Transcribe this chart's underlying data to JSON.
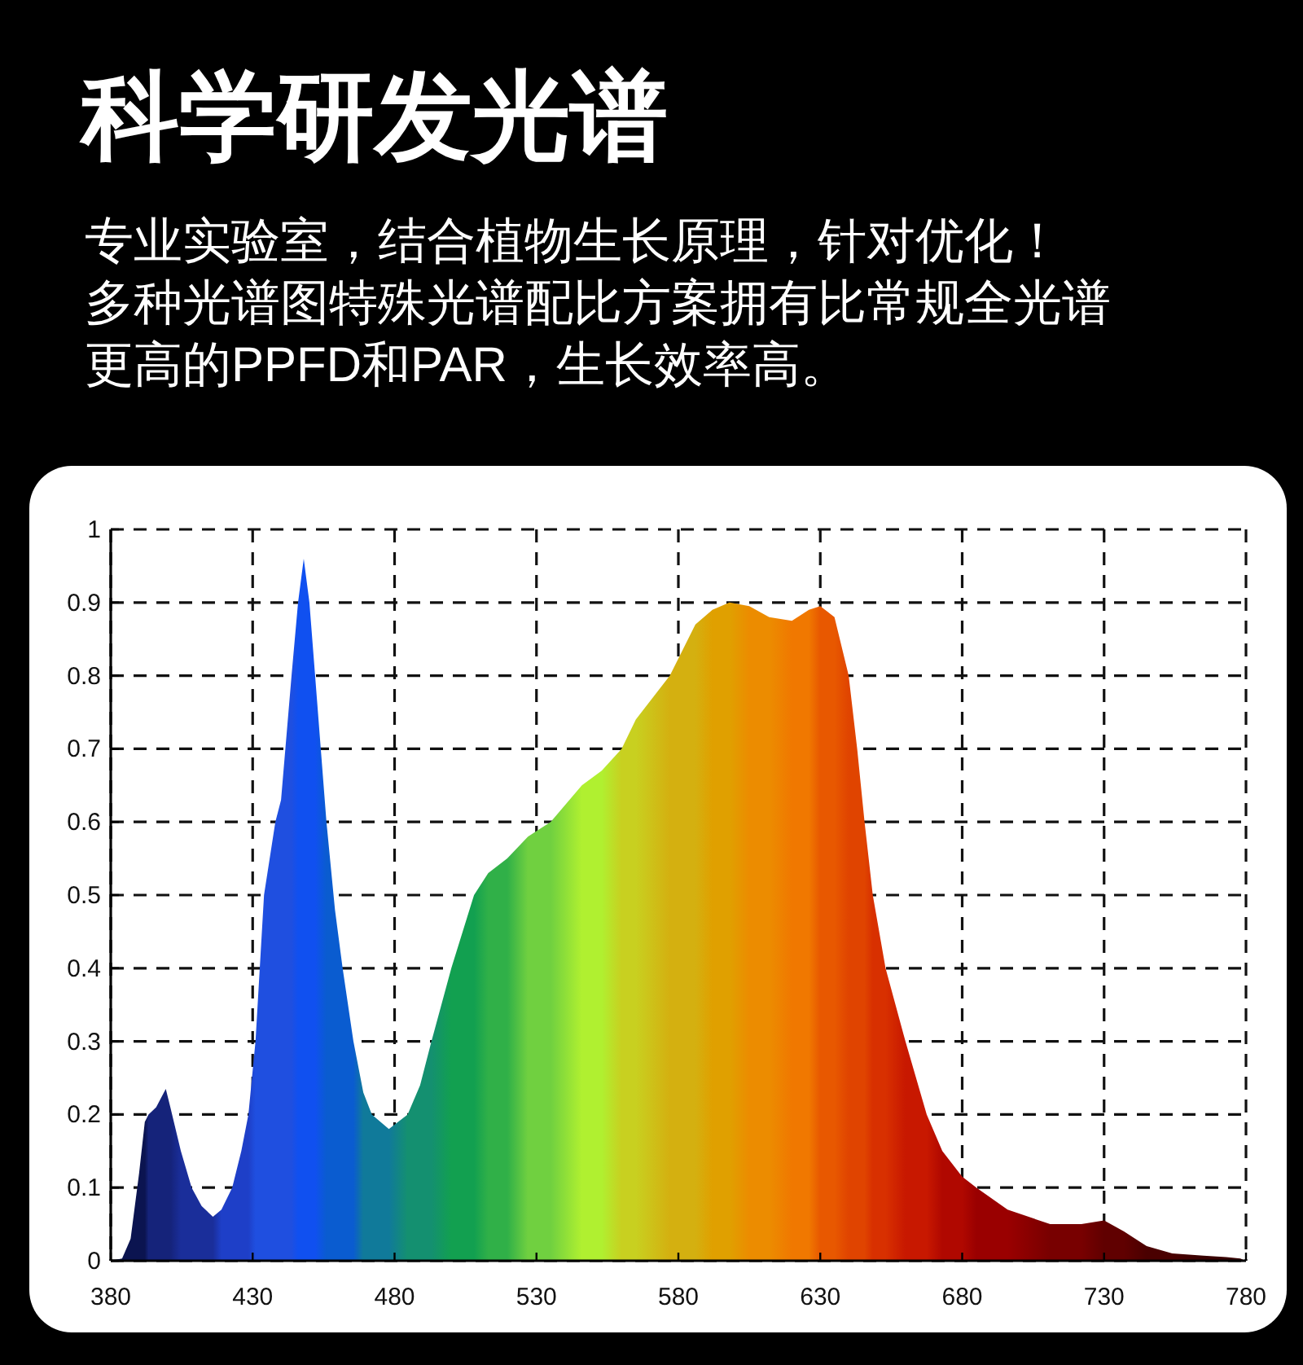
{
  "chart_data": {
    "type": "area",
    "title": "科学研发光谱",
    "subtitle": "专业实验室，结合植物生长原理，针对优化！多种光谱图特殊光谱配比方案拥有比常规全光谱更高的PPFD和PAR，生长效率高。",
    "xlim": [
      380,
      780
    ],
    "xticks": [
      380,
      430,
      480,
      530,
      580,
      630,
      680,
      730,
      780
    ],
    "ylim": [
      0,
      1
    ],
    "yticks": [
      0,
      0.1,
      0.2,
      0.3,
      0.4,
      0.5,
      0.6,
      0.7,
      0.8,
      0.9,
      1
    ],
    "grid": true,
    "series": [
      {
        "x": [
          380,
          384,
          387,
          390,
          392,
          393.3,
          396,
          399.4,
          401,
          404.7,
          408.5,
          412,
          416,
          419,
          422.8,
          426,
          428.5,
          431,
          434,
          438,
          440,
          443.7,
          446,
          448,
          450,
          452,
          456,
          459,
          461.7,
          465.5,
          469,
          472,
          478,
          484.6,
          489,
          493,
          500,
          508,
          513,
          519.7,
          527,
          535,
          546,
          553,
          560,
          565,
          577,
          586,
          592,
          598,
          605,
          612,
          620,
          626,
          630,
          635,
          640,
          643,
          645.6,
          648.5,
          653,
          660,
          667.5,
          673,
          680,
          685,
          696,
          711,
          722,
          730,
          737,
          745,
          754,
          765,
          773,
          778,
          780
        ],
        "values": [
          0,
          0.003,
          0.03,
          0.12,
          0.19,
          0.2,
          0.21,
          0.235,
          0.21,
          0.15,
          0.1,
          0.075,
          0.06,
          0.07,
          0.1,
          0.15,
          0.2,
          0.3,
          0.5,
          0.6,
          0.63,
          0.8,
          0.9,
          0.96,
          0.9,
          0.8,
          0.6,
          0.48,
          0.4,
          0.3,
          0.23,
          0.2,
          0.18,
          0.2,
          0.24,
          0.3,
          0.4,
          0.5,
          0.53,
          0.55,
          0.58,
          0.6,
          0.65,
          0.67,
          0.7,
          0.74,
          0.8,
          0.87,
          0.89,
          0.9,
          0.895,
          0.88,
          0.875,
          0.89,
          0.895,
          0.88,
          0.8,
          0.7,
          0.6,
          0.5,
          0.4,
          0.3,
          0.2,
          0.15,
          0.115,
          0.1,
          0.07,
          0.05,
          0.05,
          0.055,
          0.04,
          0.02,
          0.01,
          0.007,
          0.005,
          0.003,
          0
        ],
        "colors": [
          "#0b1450",
          "#0b1450",
          "#0b1450",
          "#0b1450",
          "#0b1450",
          "#15237a",
          "#15237a",
          "#15237a",
          "#15237a",
          "#1a2e9a",
          "#1a2e9a",
          "#1a2e9a",
          "#1a2e9a",
          "#1e3fc8",
          "#1e3fc8",
          "#1e3fc8",
          "#1e3fc8",
          "#1f4fe0",
          "#1f4fe0",
          "#1f4fe0",
          "#1f4fe0",
          "#1f4fe0",
          "#1050f0",
          "#1050f0",
          "#1050f0",
          "#1050f0",
          "#0a5cd0",
          "#0a5cd0",
          "#0a5cd0",
          "#0a5cd0",
          "#107a9a",
          "#107a9a",
          "#107a9a",
          "#149070",
          "#149070",
          "#149070",
          "#12a050",
          "#12a050",
          "#30b048",
          "#30b048",
          "#70d040",
          "#70d040",
          "#b0f030",
          "#b0f030",
          "#c8d020",
          "#c8d020",
          "#d4b010",
          "#d4b010",
          "#e0a000",
          "#e0a000",
          "#ec8c00",
          "#ec8c00",
          "#f07800",
          "#f07800",
          "#e85800",
          "#e85800",
          "#e04400",
          "#e04400",
          "#e04400",
          "#d83000",
          "#d83000",
          "#c81800",
          "#c81800",
          "#b00800",
          "#b00800",
          "#9a0000",
          "#9a0000",
          "#780000",
          "#780000",
          "#600000",
          "#600000",
          "#4a0000",
          "#4a0000",
          "#380000",
          "#380000",
          "#380000",
          "#380000"
        ]
      }
    ]
  }
}
